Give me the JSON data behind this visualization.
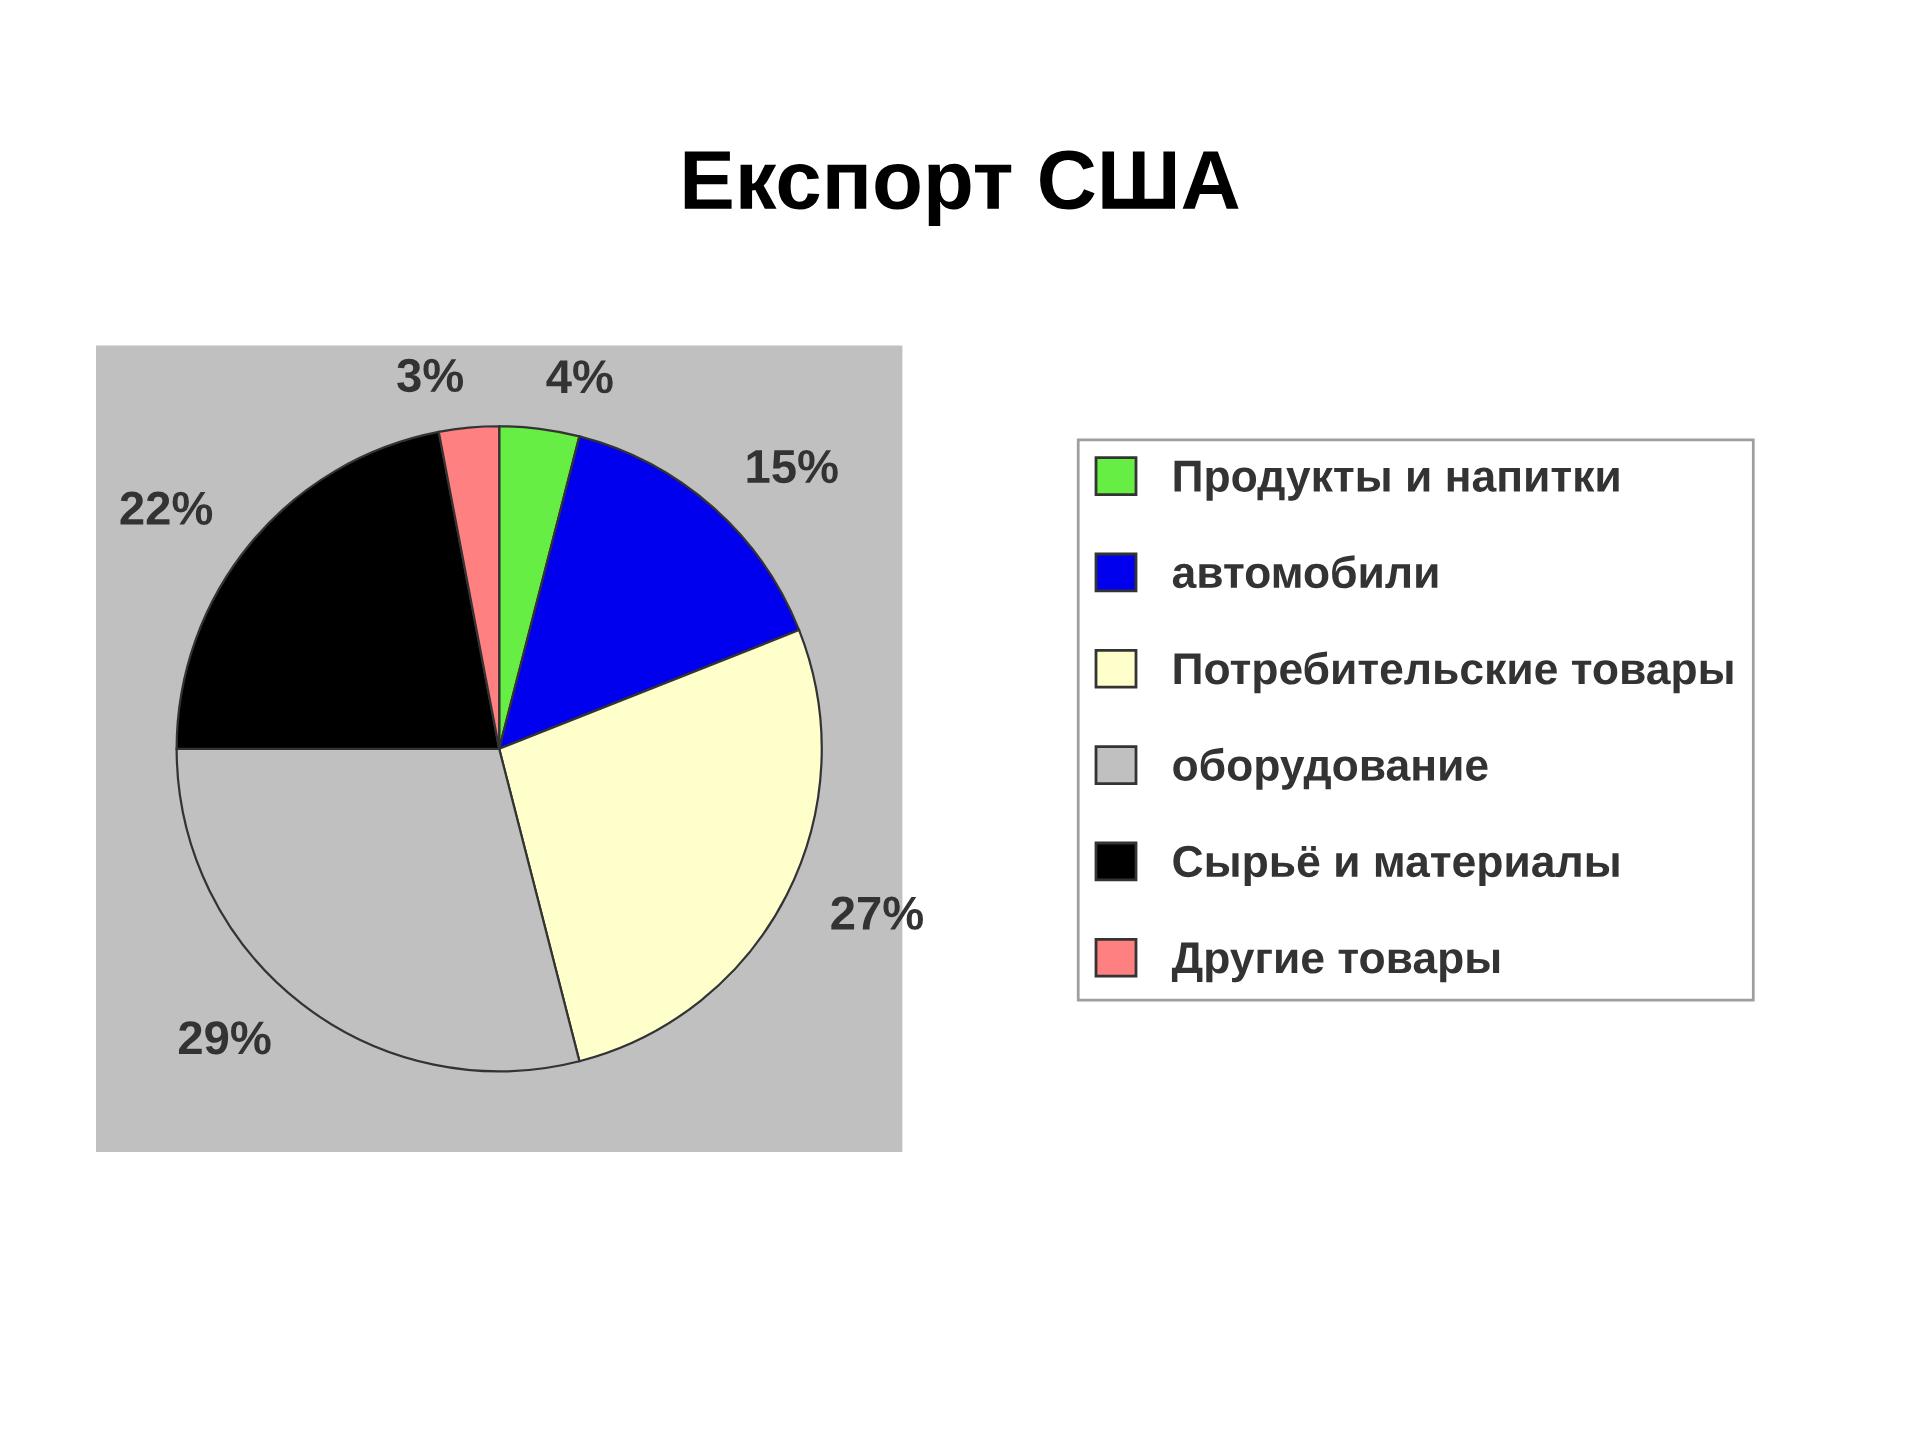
{
  "chart_data": {
    "type": "pie",
    "title": "Експорт США",
    "categories": [
      "Продукты и напитки",
      "автомобили",
      "Потребительские товары",
      "оборудование",
      "Сырьё и материалы",
      "Другие товары"
    ],
    "values": [
      4,
      15,
      27,
      29,
      22,
      3
    ],
    "colors": [
      "#66ee44",
      "#0000ee",
      "#ffffcc",
      "#c0c0c0",
      "#000000",
      "#ff8080"
    ],
    "value_labels": [
      "4%",
      "15%",
      "27%",
      "29%",
      "22%",
      "3%"
    ],
    "legend": "right"
  }
}
